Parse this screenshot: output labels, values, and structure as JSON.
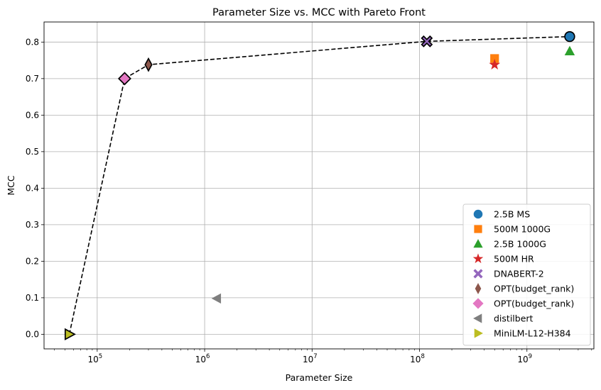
{
  "chart_data": {
    "type": "scatter",
    "title": "Parameter Size vs. MCC with Pareto Front",
    "xlabel": "Parameter Size",
    "ylabel": "MCC",
    "x_scale": "log",
    "xlim": [
      32000,
      4200000000
    ],
    "ylim": [
      -0.04,
      0.855
    ],
    "x_ticks": [
      {
        "value": 100000,
        "base": "10",
        "exp": "5"
      },
      {
        "value": 1000000,
        "base": "10",
        "exp": "6"
      },
      {
        "value": 10000000,
        "base": "10",
        "exp": "7"
      },
      {
        "value": 100000000,
        "base": "10",
        "exp": "8"
      },
      {
        "value": 1000000000,
        "base": "10",
        "exp": "9"
      }
    ],
    "y_ticks": [
      "0.0",
      "0.1",
      "0.2",
      "0.3",
      "0.4",
      "0.5",
      "0.6",
      "0.7",
      "0.8"
    ],
    "grid": true,
    "legend_position": "lower right",
    "series": [
      {
        "name": "2.5B MS",
        "marker": "circle",
        "color": "#1f77b4",
        "x": 2500000000,
        "y": 0.815,
        "pareto": true
      },
      {
        "name": "500M 1000G",
        "marker": "square",
        "color": "#ff7f0e",
        "x": 500000000,
        "y": 0.755,
        "pareto": false
      },
      {
        "name": "2.5B 1000G",
        "marker": "triangle-up",
        "color": "#2ca02c",
        "x": 2500000000,
        "y": 0.775,
        "pareto": false
      },
      {
        "name": "500M HR",
        "marker": "star",
        "color": "#d62728",
        "x": 500000000,
        "y": 0.738,
        "pareto": false
      },
      {
        "name": "DNABERT-2",
        "marker": "x-filled",
        "color": "#9467bd",
        "x": 117000000,
        "y": 0.802,
        "pareto": true
      },
      {
        "name": "OPT(budget_rank)",
        "marker": "thin-diamond",
        "color": "#8c564b",
        "x": 300000,
        "y": 0.738,
        "pareto": true
      },
      {
        "name": "OPT(budget_rank)",
        "marker": "diamond",
        "color": "#e377c2",
        "x": 180000,
        "y": 0.7,
        "pareto": true
      },
      {
        "name": "distilbert",
        "marker": "triangle-left",
        "color": "#7f7f7f",
        "x": 1300000,
        "y": 0.098,
        "pareto": false
      },
      {
        "name": "MiniLM-L12-H384",
        "marker": "triangle-right",
        "color": "#bcbd22",
        "x": 55000,
        "y": 0.0,
        "pareto": true
      }
    ],
    "pareto_front": [
      {
        "x": 55000,
        "y": 0.0
      },
      {
        "x": 180000,
        "y": 0.7
      },
      {
        "x": 300000,
        "y": 0.738
      },
      {
        "x": 117000000,
        "y": 0.802
      },
      {
        "x": 2500000000,
        "y": 0.815
      }
    ]
  }
}
